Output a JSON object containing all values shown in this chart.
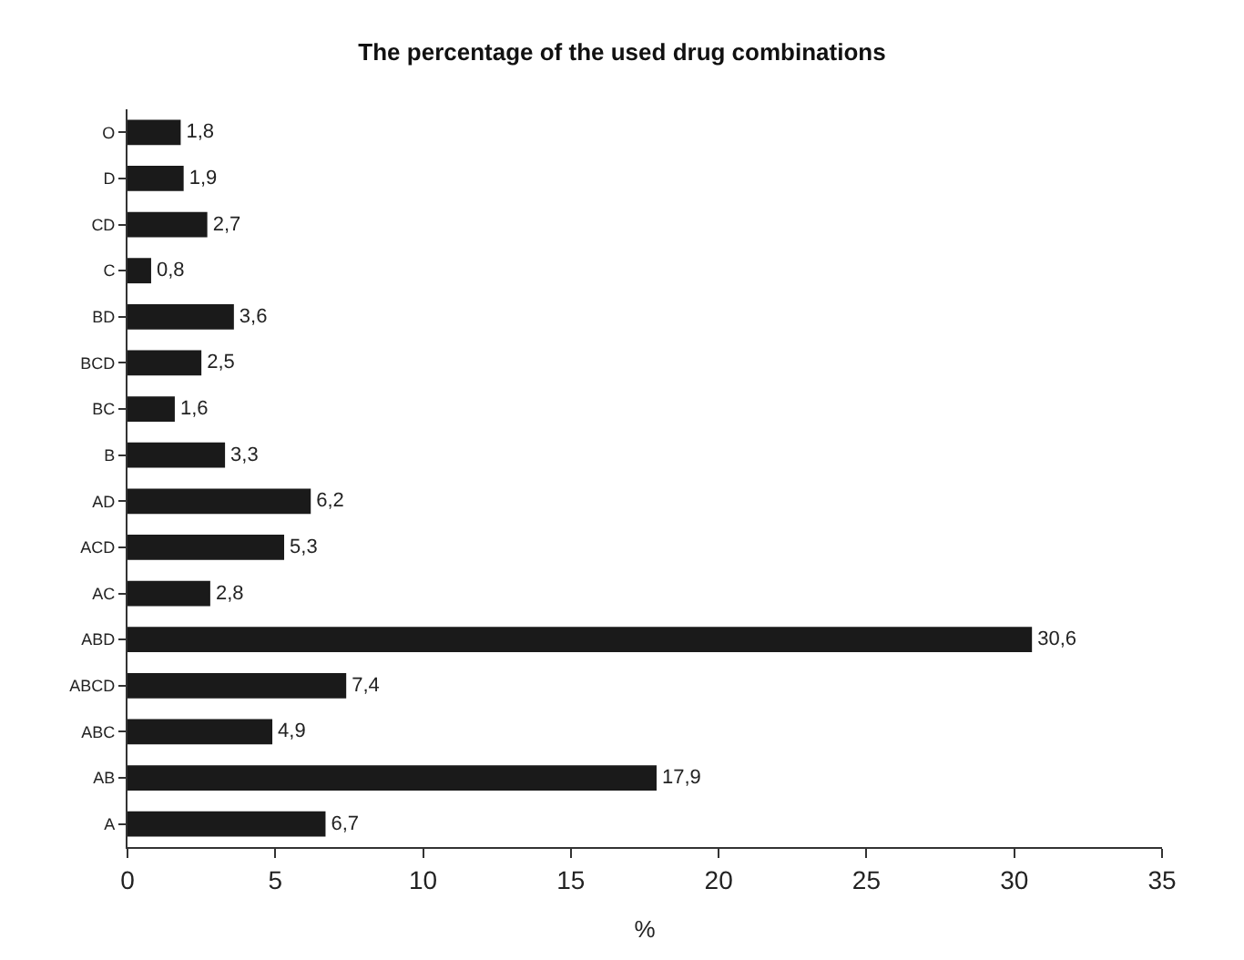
{
  "chart_data": {
    "type": "bar",
    "orientation": "horizontal",
    "title": "The percentage of the used drug combinations",
    "xlabel": "%",
    "categories": [
      "O",
      "D",
      "CD",
      "C",
      "BD",
      "BCD",
      "BC",
      "B",
      "AD",
      "ACD",
      "AC",
      "ABD",
      "ABCD",
      "ABC",
      "AB",
      "A"
    ],
    "values": [
      1.8,
      1.9,
      2.7,
      0.8,
      3.6,
      2.5,
      1.6,
      3.3,
      6.2,
      5.3,
      2.8,
      30.6,
      7.4,
      4.9,
      17.9,
      6.7
    ],
    "value_labels": [
      "1,8",
      "1,9",
      "2,7",
      "0,8",
      "3,6",
      "2,5",
      "1,6",
      "3,3",
      "6,2",
      "5,3",
      "2,8",
      "30,6",
      "7,4",
      "4,9",
      "17,9",
      "6,7"
    ],
    "color": "#1a1a1a",
    "xlim": [
      0,
      35
    ],
    "xticks": [
      0,
      5,
      10,
      15,
      20,
      25,
      30,
      35
    ]
  }
}
